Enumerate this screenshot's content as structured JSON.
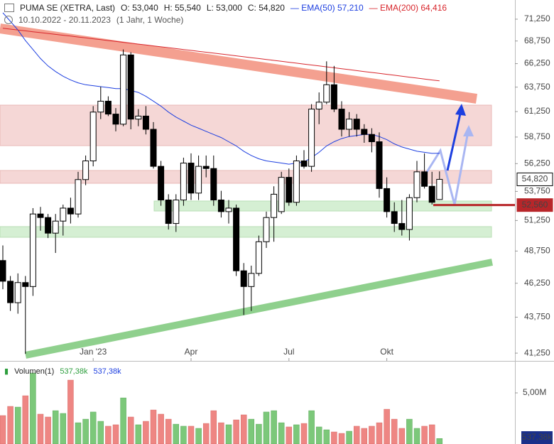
{
  "chart_data": {
    "type": "candlestick",
    "title": "PUMA SE (XETRA, Last)",
    "subtitle": "10.10.2022 - 20.11.2023",
    "period": "(1 Jahr, 1 Woche)",
    "quote": [
      {
        "label": "O:",
        "value": "53,040"
      },
      {
        "label": "H:",
        "value": "55,540"
      },
      {
        "label": "L:",
        "value": "53,000"
      },
      {
        "label": "C:",
        "value": "54,820"
      }
    ],
    "categories": [
      null,
      null,
      null,
      null,
      null,
      null,
      null,
      null,
      null,
      null,
      null,
      null,
      "Jan '23",
      null,
      null,
      null,
      null,
      null,
      null,
      null,
      null,
      null,
      null,
      null,
      null,
      "Apr",
      null,
      null,
      null,
      null,
      null,
      null,
      null,
      null,
      null,
      null,
      null,
      null,
      "Jul",
      null,
      null,
      null,
      null,
      null,
      null,
      null,
      null,
      null,
      null,
      null,
      null,
      "Okt",
      null,
      null,
      null,
      null,
      null,
      null,
      null
    ],
    "open": [
      48.0,
      46.4,
      44.8,
      46.3,
      46.0,
      51.8,
      51.5,
      50.2,
      51.2,
      52.3,
      51.8,
      54.8,
      56.5,
      61.2,
      62.3,
      61.0,
      60.0,
      67.2,
      60.5,
      60.8,
      59.5,
      56.0,
      53.0,
      51.0,
      53.0,
      56.3,
      53.6,
      56.0,
      55.8,
      53.0,
      52.0,
      52.3,
      47.2,
      46.0,
      47.0,
      49.5,
      51.5,
      52.0,
      55.0,
      52.8,
      56.5,
      56.0,
      61.5,
      62.2,
      64.0,
      61.5,
      59.5,
      60.5,
      59.5,
      59.0,
      58.3,
      54.0,
      52.0,
      51.0,
      50.5,
      53.2,
      55.5,
      54.2,
      53.04
    ],
    "high": [
      49.2,
      46.8,
      47.0,
      46.8,
      52.3,
      52.4,
      51.8,
      51.8,
      52.6,
      53.2,
      55.5,
      57.0,
      61.8,
      63.8,
      62.8,
      61.6,
      67.8,
      67.5,
      61.5,
      61.8,
      60.2,
      56.5,
      53.5,
      53.5,
      56.8,
      57.2,
      57.0,
      57.0,
      57.0,
      53.8,
      53.0,
      52.6,
      47.8,
      47.6,
      50.0,
      52.0,
      54.2,
      55.5,
      55.8,
      57.0,
      57.5,
      62.0,
      63.2,
      66.5,
      66.0,
      62.3,
      61.2,
      61.0,
      60.0,
      59.6,
      59.2,
      55.0,
      52.8,
      53.0,
      53.5,
      56.5,
      57.2,
      55.5,
      55.54
    ],
    "low": [
      45.8,
      44.2,
      44.0,
      41.2,
      45.3,
      50.4,
      49.8,
      48.6,
      50.0,
      51.0,
      51.5,
      54.3,
      56.0,
      60.5,
      60.8,
      59.3,
      59.8,
      59.5,
      59.8,
      59.0,
      55.8,
      52.5,
      50.5,
      50.3,
      52.5,
      53.0,
      53.0,
      55.0,
      52.5,
      51.5,
      51.0,
      46.8,
      43.9,
      44.2,
      46.8,
      49.0,
      49.5,
      51.8,
      52.5,
      52.5,
      55.8,
      55.5,
      60.0,
      62.0,
      61.2,
      58.8,
      58.8,
      58.8,
      58.2,
      57.3,
      53.2,
      51.5,
      50.3,
      50.0,
      49.6,
      52.8,
      54.0,
      52.6,
      53.0
    ],
    "close": [
      46.4,
      44.8,
      46.3,
      46.0,
      51.8,
      51.5,
      50.2,
      51.2,
      52.3,
      51.8,
      54.8,
      56.5,
      61.2,
      62.3,
      61.0,
      60.0,
      67.2,
      60.5,
      60.8,
      59.5,
      56.0,
      53.0,
      51.0,
      53.0,
      56.3,
      53.6,
      56.0,
      55.8,
      53.0,
      52.0,
      52.3,
      47.2,
      46.0,
      47.0,
      49.5,
      51.5,
      53.5,
      55.0,
      52.8,
      56.5,
      56.0,
      61.5,
      62.2,
      64.0,
      61.5,
      59.5,
      60.5,
      59.5,
      59.0,
      58.3,
      54.0,
      52.0,
      51.0,
      50.5,
      53.2,
      55.5,
      54.2,
      52.8,
      54.82
    ],
    "up_color": "#ffffff",
    "down_color": "#000000",
    "candle_stroke": "#000000",
    "series": [
      {
        "name": "EMA(50)",
        "color": "#1d3fe0",
        "last_label": "57,210",
        "values": [
          72.0,
          71.0,
          70.0,
          68.8,
          67.8,
          66.8,
          66.0,
          65.4,
          64.9,
          64.5,
          64.2,
          64.0,
          63.9,
          63.8,
          63.7,
          63.6,
          63.6,
          63.4,
          63.2,
          62.8,
          62.3,
          61.8,
          61.2,
          60.7,
          60.3,
          59.9,
          59.6,
          59.3,
          59.0,
          58.7,
          58.3,
          57.9,
          57.4,
          57.0,
          56.7,
          56.5,
          56.4,
          56.3,
          56.2,
          56.3,
          56.4,
          56.8,
          57.3,
          57.9,
          58.3,
          58.6,
          58.8,
          58.9,
          59.0,
          59.0,
          58.8,
          58.5,
          58.1,
          57.8,
          57.6,
          57.4,
          57.3,
          57.2,
          57.21
        ]
      },
      {
        "name": "EMA(200)",
        "color": "#d8262c",
        "last_label": "64,416",
        "values": [
          70.2,
          70.1,
          70.0,
          69.9,
          69.8,
          69.7,
          69.6,
          69.5,
          69.4,
          69.3,
          69.2,
          69.1,
          69.0,
          68.9,
          68.8,
          68.7,
          68.6,
          68.5,
          68.4,
          68.3,
          68.2,
          68.1,
          68.0,
          67.9,
          67.8,
          67.7,
          67.6,
          67.5,
          67.4,
          67.3,
          67.2,
          67.1,
          67.0,
          66.9,
          66.8,
          66.7,
          66.6,
          66.5,
          66.4,
          66.3,
          66.2,
          66.1,
          66.0,
          65.9,
          65.8,
          65.7,
          65.6,
          65.5,
          65.4,
          65.3,
          65.2,
          65.1,
          65.0,
          64.9,
          64.8,
          64.7,
          64.6,
          64.5,
          64.416
        ]
      }
    ],
    "log": true,
    "ylim": [
      40.73,
      73.52
    ],
    "yticks": [
      {
        "value": 41.25,
        "label": "41,250"
      },
      {
        "value": 43.75,
        "label": "43,750"
      },
      {
        "value": 46.25,
        "label": "46,250"
      },
      {
        "value": 48.75,
        "label": "48,750"
      },
      {
        "value": 51.25,
        "label": "51,250"
      },
      {
        "value": 53.75,
        "label": "53,750"
      },
      {
        "value": 56.25,
        "label": "56,250"
      },
      {
        "value": 58.75,
        "label": "58,750"
      },
      {
        "value": 61.25,
        "label": "61,250"
      },
      {
        "value": 63.75,
        "label": "63,750"
      },
      {
        "value": 66.25,
        "label": "66,250"
      },
      {
        "value": 68.75,
        "label": "68,750"
      },
      {
        "value": 71.25,
        "label": "71,250"
      }
    ],
    "price_labels": [
      {
        "value": 54.82,
        "label": "54,820",
        "color": "#000000",
        "filled": false
      },
      {
        "value": 52.56,
        "label": "52,560",
        "color": "#b8262a",
        "filled": true
      }
    ],
    "volume": {
      "title": "Volumen(1)",
      "legend": [
        "537,38k",
        "537,38k"
      ],
      "last_label": "537,38k",
      "up_color": "#7cc87a",
      "down_color": "#ee8683",
      "values": [
        2780000,
        3680000,
        3610000,
        4720000,
        6940000,
        2920000,
        2640000,
        3260000,
        2990000,
        6250000,
        2080000,
        2430000,
        3130000,
        2220000,
        1740000,
        1880000,
        4510000,
        2640000,
        1880000,
        2220000,
        3330000,
        2920000,
        2430000,
        1940000,
        1740000,
        1740000,
        1530000,
        2010000,
        3260000,
        2080000,
        1880000,
        2360000,
        2850000,
        2430000,
        1940000,
        3130000,
        3260000,
        2080000,
        1670000,
        1880000,
        2010000,
        3260000,
        1670000,
        1390000,
        1180000,
        1040000,
        1250000,
        1740000,
        1530000,
        1740000,
        2080000,
        3400000,
        2430000,
        1530000,
        2430000,
        1530000,
        1740000,
        1880000,
        537380
      ],
      "ylim": [
        0,
        7990000
      ],
      "yticks": [
        {
          "value": 5000000,
          "label": "5,00M"
        }
      ]
    }
  }
}
